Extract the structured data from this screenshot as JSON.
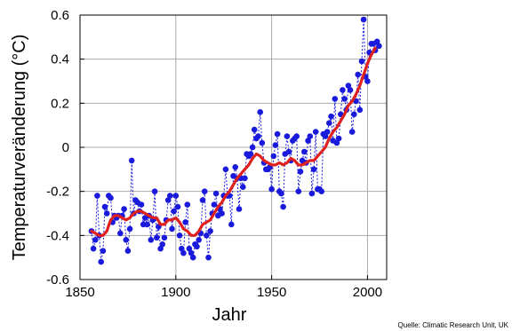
{
  "chart_data": {
    "type": "line",
    "title": "",
    "xlabel": "Jahr",
    "ylabel": "Temperaturveränderung (°C)",
    "xlim": [
      1850,
      2010
    ],
    "ylim": [
      -0.6,
      0.6
    ],
    "x_ticks": [
      "1850",
      "1900",
      "1950",
      "2000"
    ],
    "y_ticks": [
      "-0.6",
      "-0.4",
      "-0.2",
      "0",
      "0.2",
      "0.4",
      "0.6"
    ],
    "grid": true,
    "legend": "none",
    "source_note": "Quelle: Climatic Research Unit, UK",
    "colors": {
      "annual": "#1a1adc",
      "smoothed": "#e0201c",
      "grid": "#aaaaaa",
      "axis": "#000000"
    },
    "series": [
      {
        "style": "markers-dashed",
        "x": [
          1856,
          1857,
          1858,
          1859,
          1860,
          1861,
          1862,
          1863,
          1864,
          1865,
          1866,
          1867,
          1868,
          1869,
          1870,
          1871,
          1872,
          1873,
          1874,
          1875,
          1876,
          1877,
          1878,
          1879,
          1880,
          1881,
          1882,
          1883,
          1884,
          1885,
          1886,
          1887,
          1888,
          1889,
          1890,
          1891,
          1892,
          1893,
          1894,
          1895,
          1896,
          1897,
          1898,
          1899,
          1900,
          1901,
          1902,
          1903,
          1904,
          1905,
          1906,
          1907,
          1908,
          1909,
          1910,
          1911,
          1912,
          1913,
          1914,
          1915,
          1916,
          1917,
          1918,
          1919,
          1920,
          1921,
          1922,
          1923,
          1924,
          1925,
          1926,
          1927,
          1928,
          1929,
          1930,
          1931,
          1932,
          1933,
          1934,
          1935,
          1936,
          1937,
          1938,
          1939,
          1940,
          1941,
          1942,
          1943,
          1944,
          1945,
          1946,
          1947,
          1948,
          1949,
          1950,
          1951,
          1952,
          1953,
          1954,
          1955,
          1956,
          1957,
          1958,
          1959,
          1960,
          1961,
          1962,
          1963,
          1964,
          1965,
          1966,
          1967,
          1968,
          1969,
          1970,
          1971,
          1972,
          1973,
          1974,
          1975,
          1976,
          1977,
          1978,
          1979,
          1980,
          1981,
          1982,
          1983,
          1984,
          1985,
          1986,
          1987,
          1988,
          1989,
          1990,
          1991,
          1992,
          1993,
          1994,
          1995,
          1996,
          1997,
          1998,
          1999,
          2000,
          2001,
          2002,
          2003,
          2004,
          2005,
          2006
        ],
        "values": [
          -0.38,
          -0.46,
          -0.42,
          -0.22,
          -0.4,
          -0.52,
          -0.47,
          -0.27,
          -0.3,
          -0.22,
          -0.23,
          -0.34,
          -0.31,
          -0.32,
          -0.31,
          -0.39,
          -0.31,
          -0.28,
          -0.42,
          -0.47,
          -0.37,
          -0.06,
          -0.3,
          -0.24,
          -0.25,
          -0.29,
          -0.26,
          -0.35,
          -0.32,
          -0.35,
          -0.31,
          -0.42,
          -0.33,
          -0.2,
          -0.41,
          -0.36,
          -0.46,
          -0.44,
          -0.41,
          -0.33,
          -0.24,
          -0.22,
          -0.37,
          -0.29,
          -0.22,
          -0.27,
          -0.4,
          -0.46,
          -0.48,
          -0.34,
          -0.26,
          -0.46,
          -0.48,
          -0.5,
          -0.44,
          -0.45,
          -0.42,
          -0.39,
          -0.24,
          -0.2,
          -0.4,
          -0.5,
          -0.38,
          -0.3,
          -0.26,
          -0.21,
          -0.31,
          -0.28,
          -0.3,
          -0.22,
          -0.1,
          -0.22,
          -0.22,
          -0.35,
          -0.13,
          -0.09,
          -0.14,
          -0.28,
          -0.14,
          -0.18,
          -0.14,
          -0.03,
          -0.04,
          -0.03,
          0.0,
          0.08,
          0.04,
          0.05,
          0.16,
          0.02,
          -0.07,
          -0.1,
          -0.1,
          -0.09,
          -0.19,
          -0.04,
          0.01,
          0.06,
          -0.2,
          -0.21,
          -0.27,
          -0.03,
          0.05,
          -0.02,
          -0.06,
          0.03,
          0.04,
          0.05,
          -0.2,
          -0.11,
          -0.06,
          -0.02,
          -0.07,
          0.03,
          0.05,
          -0.21,
          -0.1,
          0.07,
          -0.19,
          -0.19,
          -0.2,
          0.06,
          0.05,
          0.07,
          0.11,
          0.14,
          0.03,
          0.22,
          0.02,
          0.04,
          0.15,
          0.26,
          0.22,
          0.17,
          0.28,
          0.26,
          0.07,
          0.15,
          0.21,
          0.33,
          0.17,
          0.39,
          0.58,
          0.32,
          0.3,
          0.43,
          0.47,
          0.47,
          0.44,
          0.48,
          0.46
        ]
      },
      {
        "style": "smoothed-line",
        "x": [
          1856,
          1858,
          1860,
          1862,
          1864,
          1866,
          1868,
          1870,
          1872,
          1874,
          1876,
          1878,
          1880,
          1882,
          1884,
          1886,
          1888,
          1890,
          1892,
          1894,
          1896,
          1898,
          1900,
          1902,
          1904,
          1906,
          1908,
          1910,
          1912,
          1914,
          1916,
          1918,
          1920,
          1922,
          1924,
          1926,
          1928,
          1930,
          1932,
          1934,
          1936,
          1938,
          1940,
          1942,
          1944,
          1946,
          1948,
          1950,
          1952,
          1954,
          1956,
          1958,
          1960,
          1962,
          1964,
          1966,
          1968,
          1970,
          1972,
          1974,
          1976,
          1978,
          1980,
          1982,
          1984,
          1986,
          1988,
          1990,
          1992,
          1994,
          1996,
          1998,
          2000,
          2002,
          2004
        ],
        "values": [
          -0.38,
          -0.39,
          -0.4,
          -0.4,
          -0.38,
          -0.33,
          -0.31,
          -0.31,
          -0.32,
          -0.33,
          -0.32,
          -0.3,
          -0.29,
          -0.29,
          -0.3,
          -0.31,
          -0.32,
          -0.32,
          -0.35,
          -0.35,
          -0.33,
          -0.33,
          -0.32,
          -0.34,
          -0.37,
          -0.38,
          -0.4,
          -0.4,
          -0.38,
          -0.35,
          -0.34,
          -0.33,
          -0.3,
          -0.27,
          -0.25,
          -0.22,
          -0.2,
          -0.17,
          -0.14,
          -0.12,
          -0.1,
          -0.08,
          -0.05,
          -0.03,
          -0.04,
          -0.06,
          -0.07,
          -0.08,
          -0.08,
          -0.07,
          -0.08,
          -0.07,
          -0.05,
          -0.06,
          -0.08,
          -0.08,
          -0.07,
          -0.06,
          -0.06,
          -0.04,
          -0.02,
          0.0,
          0.04,
          0.07,
          0.09,
          0.12,
          0.15,
          0.19,
          0.21,
          0.24,
          0.28,
          0.33,
          0.38,
          0.42,
          0.45
        ]
      }
    ]
  }
}
